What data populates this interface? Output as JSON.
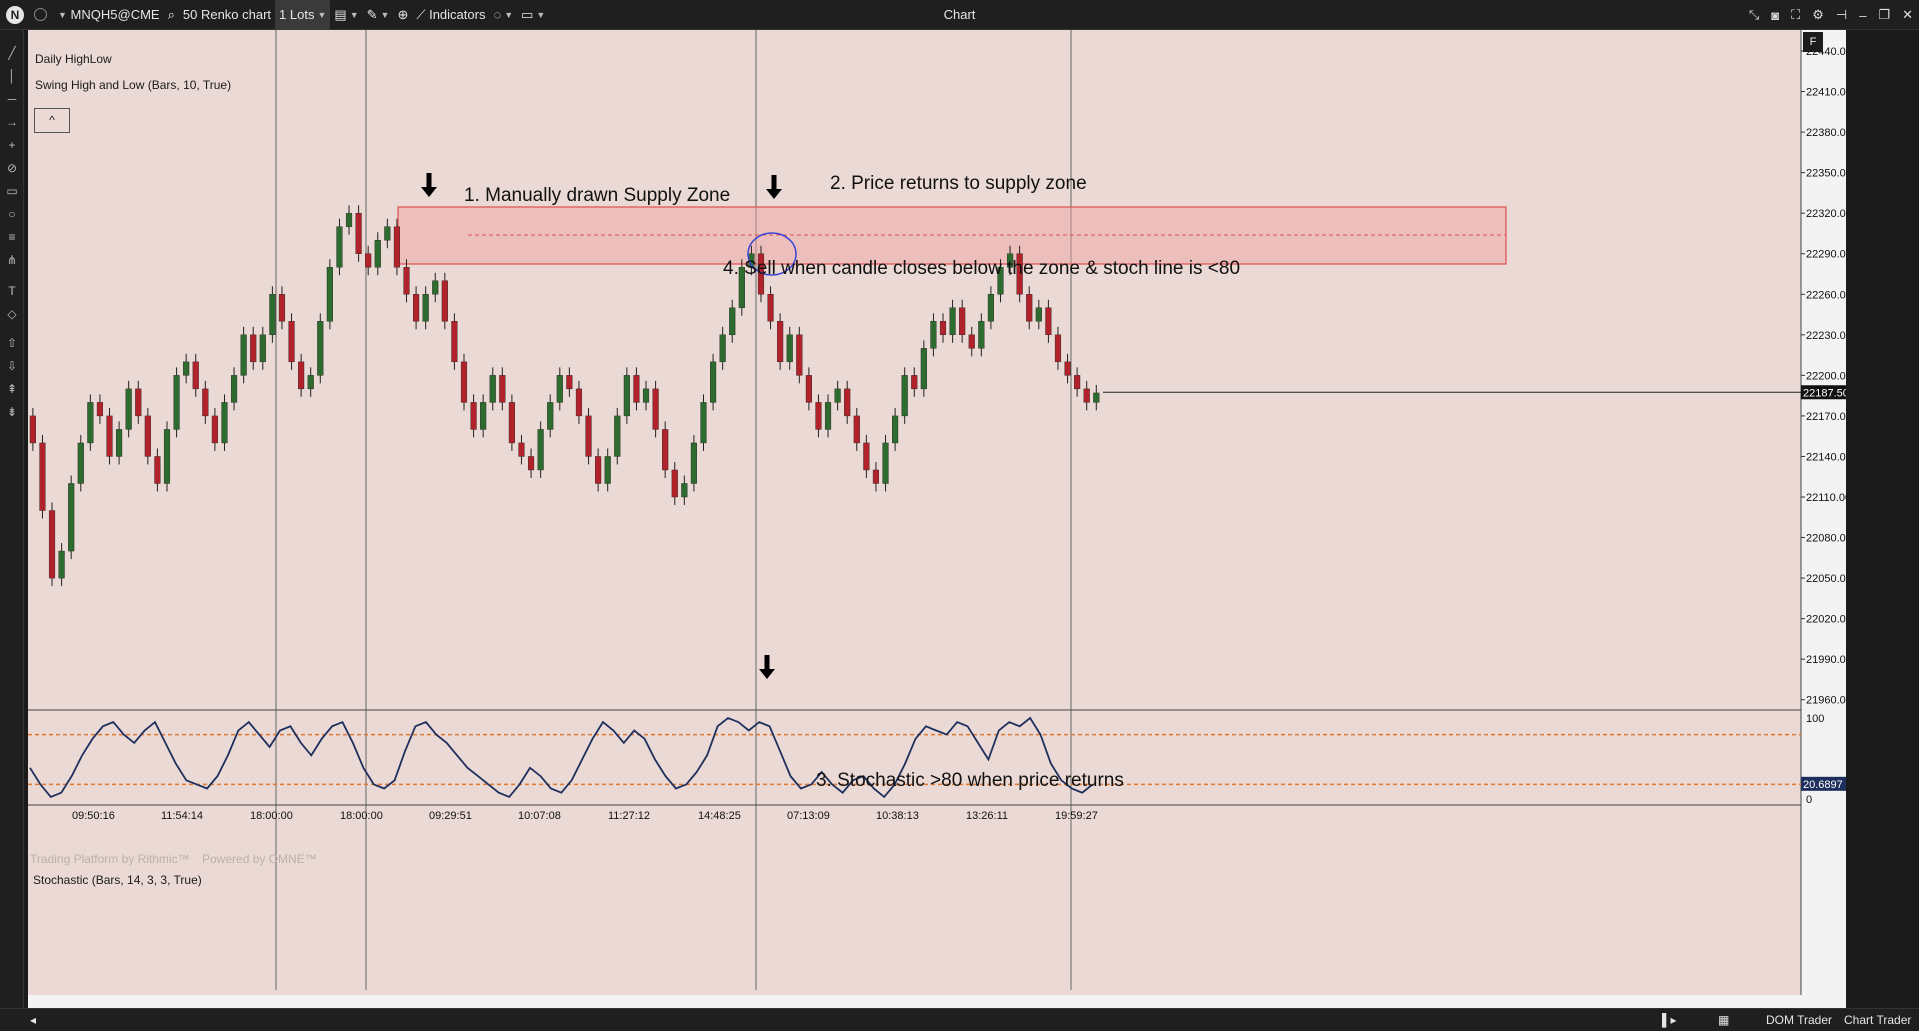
{
  "toolbar": {
    "symbol": "MNQH5@CME",
    "chart_type": "50 Renko chart",
    "lots": "1 Lots",
    "indicators_label": "Indicators",
    "window_title": "Chart"
  },
  "chart": {
    "legend": [
      "Daily HighLow",
      "Swing High and Low (Bars, 10, True)"
    ],
    "stoch_label": "Stochastic (Bars, 14, 3, 3, True)",
    "watermark_rithmic": "Trading Platform by Rithmic™",
    "watermark_omne": "Powered by OMNE™",
    "collapse_glyph": "^",
    "flag_glyph": "F",
    "current_price": "22187.50",
    "stoch_value": "20.6897",
    "price_axis": [
      "22440.00",
      "22410.00",
      "22380.00",
      "22350.00",
      "22320.00",
      "22290.00",
      "22260.00",
      "22230.00",
      "22200.00",
      "22170.00",
      "22140.00",
      "22110.00",
      "22080.00",
      "22050.00",
      "22020.00",
      "21990.00",
      "21960.00"
    ],
    "stoch_axis": [
      "100",
      "0"
    ],
    "time_axis": [
      "09:50:16",
      "11:54:14",
      "18:00:00",
      "18:00:00",
      "09:29:51",
      "10:07:08",
      "11:27:12",
      "14:48:25",
      "07:13:09",
      "10:38:13",
      "13:26:11",
      "19:59:27"
    ],
    "annotations": [
      "1. Manually drawn Supply Zone",
      "2. Price returns to supply zone",
      "4. Sell when candle closes below the zone & stoch line is <80",
      "3. Stochastic >80 when price returns"
    ],
    "colors": {
      "background": "#ead9d4",
      "up_candle": "#2e6b2e",
      "down_candle": "#b2222a",
      "zone_fill": "#f0a0a0",
      "zone_border": "#e05050",
      "stoch_line": "#1e2f5e",
      "stoch_levels": "#e07830",
      "ellipse": "#3b46d6"
    }
  },
  "bottom": {
    "dom_trader": "DOM Trader",
    "chart_trader": "Chart Trader"
  }
}
